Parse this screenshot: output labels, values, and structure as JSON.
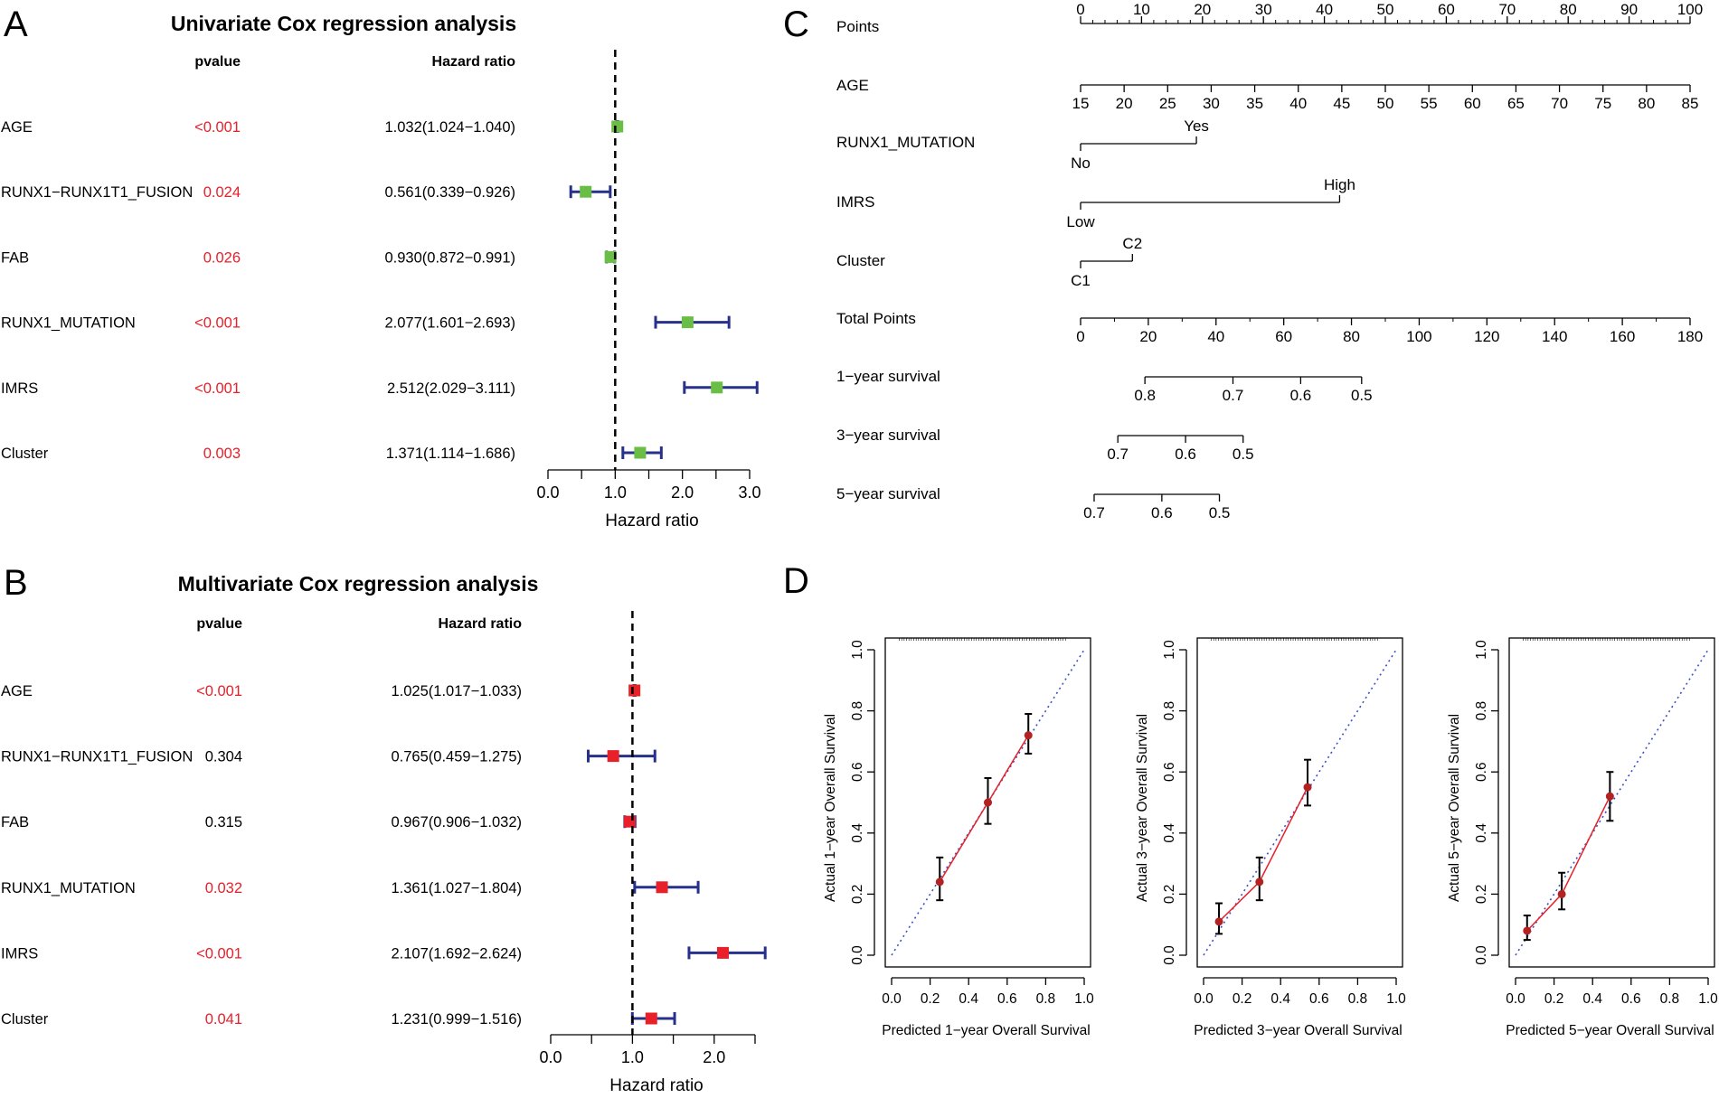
{
  "panels": {
    "A": {
      "letter": "A",
      "title": "Univariate Cox regression analysis"
    },
    "B": {
      "letter": "B",
      "title": "Multivariate Cox regression analysis"
    },
    "C": {
      "letter": "C"
    },
    "D": {
      "letter": "D"
    }
  },
  "chart_data": [
    {
      "id": "A",
      "type": "forest",
      "title": "Univariate Cox regression analysis",
      "col_pvalue": "pvalue",
      "col_hr": "Hazard ratio",
      "xlabel": "Hazard ratio",
      "xlim": [
        0,
        3
      ],
      "ticks": [
        0,
        0.5,
        1,
        1.5,
        2,
        2.5,
        3
      ],
      "tick_labels": [
        "0.0",
        "",
        "1.0",
        "",
        "2.0",
        "",
        "3.0"
      ],
      "reference_line": 1,
      "marker_color": "#6ABD45",
      "ci_color": "#27318B",
      "rows": [
        {
          "label": "AGE",
          "pvalue": "<0.001",
          "significant": true,
          "hr_text": "1.032(1.024−1.040)",
          "hr": 1.032,
          "lo": 1.024,
          "hi": 1.04
        },
        {
          "label": "RUNX1−RUNX1T1_FUSION",
          "pvalue": "0.024",
          "significant": true,
          "hr_text": "0.561(0.339−0.926)",
          "hr": 0.561,
          "lo": 0.339,
          "hi": 0.926
        },
        {
          "label": "FAB",
          "pvalue": "0.026",
          "significant": true,
          "hr_text": "0.930(0.872−0.991)",
          "hr": 0.93,
          "lo": 0.872,
          "hi": 0.991
        },
        {
          "label": "RUNX1_MUTATION",
          "pvalue": "<0.001",
          "significant": true,
          "hr_text": "2.077(1.601−2.693)",
          "hr": 2.077,
          "lo": 1.601,
          "hi": 2.693
        },
        {
          "label": "IMRS",
          "pvalue": "<0.001",
          "significant": true,
          "hr_text": "2.512(2.029−3.111)",
          "hr": 2.512,
          "lo": 2.029,
          "hi": 3.111
        },
        {
          "label": "Cluster",
          "pvalue": "0.003",
          "significant": true,
          "hr_text": "1.371(1.114−1.686)",
          "hr": 1.371,
          "lo": 1.114,
          "hi": 1.686
        }
      ]
    },
    {
      "id": "B",
      "type": "forest",
      "title": "Multivariate Cox regression analysis",
      "col_pvalue": "pvalue",
      "col_hr": "Hazard ratio",
      "xlabel": "Hazard ratio",
      "xlim": [
        0,
        2.5
      ],
      "ticks": [
        0,
        0.5,
        1,
        1.5,
        2,
        2.5
      ],
      "tick_labels": [
        "0.0",
        "",
        "1.0",
        "",
        "2.0",
        ""
      ],
      "reference_line": 1,
      "marker_color": "#E8202A",
      "ci_color": "#27318B",
      "rows": [
        {
          "label": "AGE",
          "pvalue": "<0.001",
          "significant": true,
          "hr_text": "1.025(1.017−1.033)",
          "hr": 1.025,
          "lo": 1.017,
          "hi": 1.033
        },
        {
          "label": "RUNX1−RUNX1T1_FUSION",
          "pvalue": "0.304",
          "significant": false,
          "hr_text": "0.765(0.459−1.275)",
          "hr": 0.765,
          "lo": 0.459,
          "hi": 1.275
        },
        {
          "label": "FAB",
          "pvalue": "0.315",
          "significant": false,
          "hr_text": "0.967(0.906−1.032)",
          "hr": 0.967,
          "lo": 0.906,
          "hi": 1.032
        },
        {
          "label": "RUNX1_MUTATION",
          "pvalue": "0.032",
          "significant": true,
          "hr_text": "1.361(1.027−1.804)",
          "hr": 1.361,
          "lo": 1.027,
          "hi": 1.804
        },
        {
          "label": "IMRS",
          "pvalue": "<0.001",
          "significant": true,
          "hr_text": "2.107(1.692−2.624)",
          "hr": 2.107,
          "lo": 1.692,
          "hi": 2.624
        },
        {
          "label": "Cluster",
          "pvalue": "0.041",
          "significant": true,
          "hr_text": "1.231(0.999−1.516)",
          "hr": 1.231,
          "lo": 0.999,
          "hi": 1.516
        }
      ]
    },
    {
      "id": "C",
      "type": "nomogram",
      "points_scale": {
        "label": "Points",
        "min": 0,
        "max": 100,
        "ticks": [
          0,
          10,
          20,
          30,
          40,
          50,
          60,
          70,
          80,
          90,
          100
        ]
      },
      "rows": [
        {
          "label": "AGE",
          "kind": "scale",
          "values": [
            15,
            20,
            25,
            30,
            35,
            40,
            45,
            50,
            55,
            60,
            65,
            70,
            75,
            80,
            85
          ],
          "points_range": [
            0,
            100
          ]
        },
        {
          "label": "RUNX1_MUTATION",
          "kind": "categorical",
          "levels": [
            {
              "name": "No",
              "points": 0
            },
            {
              "name": "Yes",
              "points": 19
            }
          ]
        },
        {
          "label": "IMRS",
          "kind": "categorical",
          "levels": [
            {
              "name": "Low",
              "points": 0
            },
            {
              "name": "High",
              "points": 42.5
            }
          ]
        },
        {
          "label": "Cluster",
          "kind": "categorical",
          "levels": [
            {
              "name": "C1",
              "points": 0
            },
            {
              "name": "C2",
              "points": 8.5
            }
          ]
        }
      ],
      "total_points": {
        "label": "Total Points",
        "min": 0,
        "max": 180,
        "ticks": [
          0,
          20,
          40,
          60,
          80,
          100,
          120,
          140,
          160,
          180
        ]
      },
      "survival": [
        {
          "label": "1−year survival",
          "tick_labels": [
            "0.8",
            "0.7",
            "0.6",
            "0.5"
          ],
          "tick_total_points": [
            19,
            45,
            65,
            83
          ],
          "line_total_points": [
            19,
            83
          ]
        },
        {
          "label": "3−year survival",
          "tick_labels": [
            "0.7",
            "0.6",
            "0.5"
          ],
          "tick_total_points": [
            11,
            31,
            48
          ],
          "line_total_points": [
            11,
            48
          ]
        },
        {
          "label": "5−year survival",
          "tick_labels": [
            "0.7",
            "0.6",
            "0.5"
          ],
          "tick_total_points": [
            4,
            24,
            41
          ],
          "line_total_points": [
            4,
            41
          ]
        }
      ]
    },
    {
      "id": "D",
      "type": "calibration",
      "xlim": [
        0,
        1
      ],
      "ylim": [
        0,
        1
      ],
      "ticks": [
        0,
        0.2,
        0.4,
        0.6,
        0.8,
        1.0
      ],
      "tick_labels": [
        "0.0",
        "0.2",
        "0.4",
        "0.6",
        "0.8",
        "1.0"
      ],
      "ideal_line_color": "#3A4FC8",
      "fit_line_color": "#E8202A",
      "point_color": "#B22222",
      "plots": [
        {
          "xlabel": "Predicted 1−year Overall Survival",
          "ylabel": "Actual 1−year Overall Survival",
          "points": [
            {
              "x": 0.25,
              "y": 0.24,
              "lo": 0.18,
              "hi": 0.32
            },
            {
              "x": 0.5,
              "y": 0.5,
              "lo": 0.43,
              "hi": 0.58
            },
            {
              "x": 0.71,
              "y": 0.72,
              "lo": 0.66,
              "hi": 0.79
            }
          ]
        },
        {
          "xlabel": "Predicted 3−year Overall Survival",
          "ylabel": "Actual 3−year Overall Survival",
          "points": [
            {
              "x": 0.08,
              "y": 0.11,
              "lo": 0.07,
              "hi": 0.17
            },
            {
              "x": 0.29,
              "y": 0.24,
              "lo": 0.18,
              "hi": 0.32
            },
            {
              "x": 0.54,
              "y": 0.55,
              "lo": 0.49,
              "hi": 0.64
            }
          ]
        },
        {
          "xlabel": "Predicted 5−year Overall Survival",
          "ylabel": "Actual 5−year Overall Survival",
          "points": [
            {
              "x": 0.06,
              "y": 0.08,
              "lo": 0.05,
              "hi": 0.13
            },
            {
              "x": 0.24,
              "y": 0.2,
              "lo": 0.15,
              "hi": 0.27
            },
            {
              "x": 0.49,
              "y": 0.52,
              "lo": 0.44,
              "hi": 0.6
            }
          ]
        }
      ]
    }
  ]
}
